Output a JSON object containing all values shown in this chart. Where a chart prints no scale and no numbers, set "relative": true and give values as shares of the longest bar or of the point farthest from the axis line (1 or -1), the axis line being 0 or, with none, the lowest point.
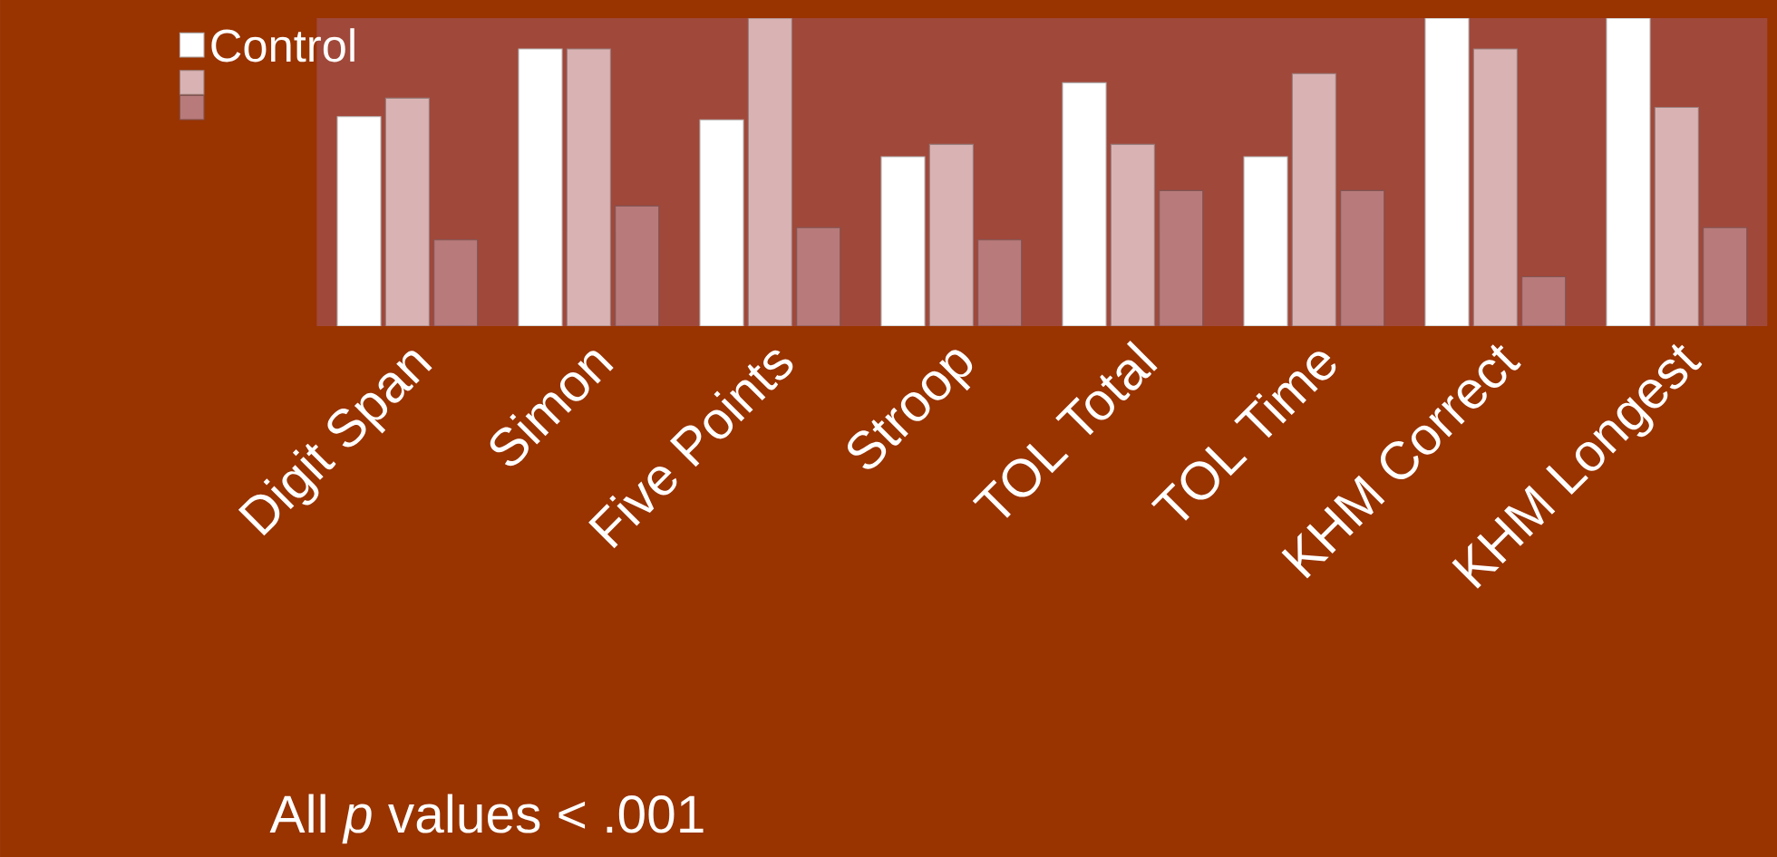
{
  "chart_data": {
    "type": "bar",
    "relative": true,
    "categories": [
      "Digit Span",
      "Simon",
      "Five Points",
      "Stroop",
      "TOL Total",
      "TOL Time",
      "KHM Correct",
      "KHM Longest"
    ],
    "series": [
      {
        "name": "Control",
        "color": "#ffffff",
        "values": [
          0.68,
          0.9,
          0.67,
          0.55,
          0.79,
          0.55,
          1,
          1
        ]
      },
      {
        "color": "#d9b3b3",
        "values": [
          0.74,
          0.9,
          1,
          0.59,
          0.59,
          0.82,
          0.9,
          0.71
        ]
      },
      {
        "color": "#b87a7a",
        "values": [
          0.28,
          0.39,
          0.32,
          0.28,
          0.44,
          0.44,
          0.16,
          0.32
        ]
      }
    ],
    "legend": "top left",
    "annotations": [
      "All *p* values < .001"
    ]
  }
}
